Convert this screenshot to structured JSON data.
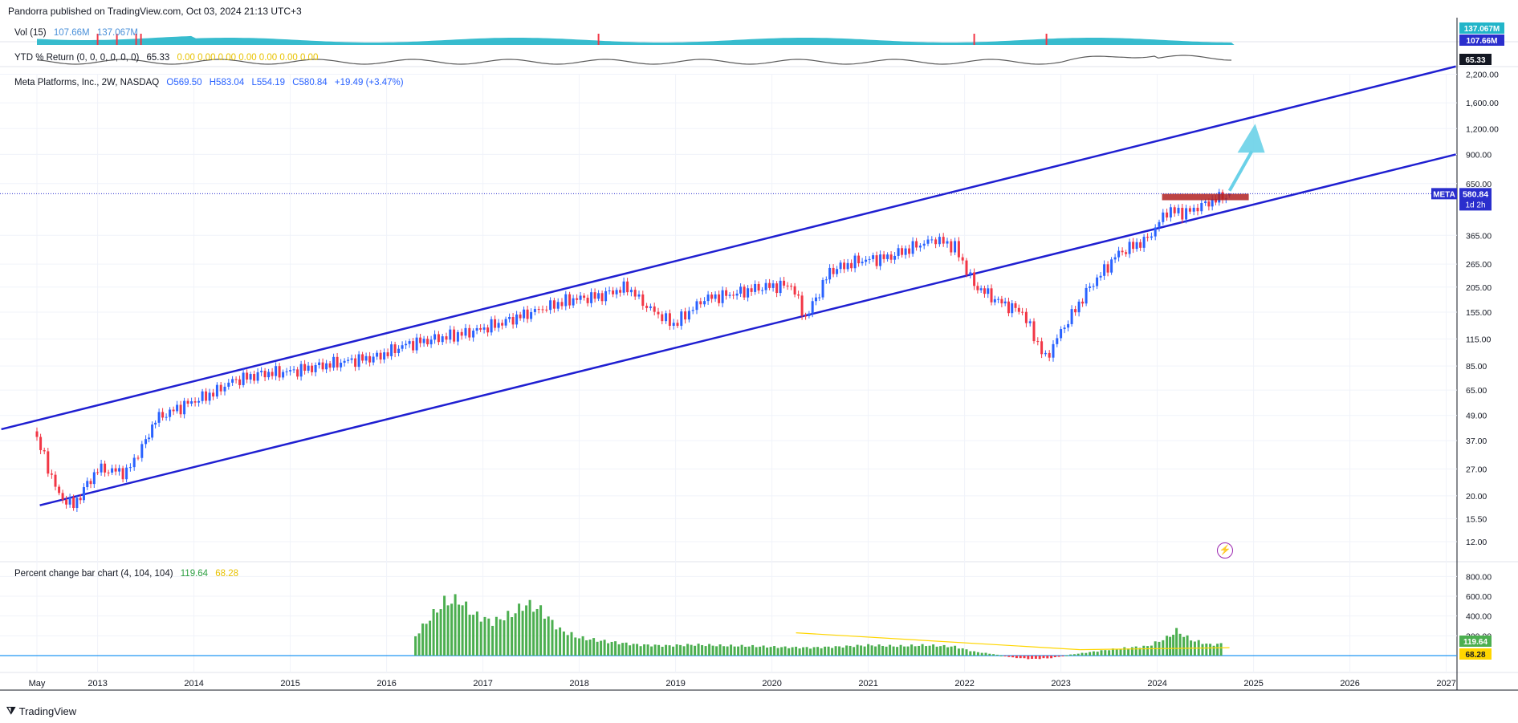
{
  "header": {
    "published": "Pandorra published on TradingView.com, Oct 03, 2024 21:13 UTC+3"
  },
  "legends": {
    "vol": {
      "name": "Vol (15)",
      "v1": "107.66M",
      "v2": "137.067M"
    },
    "ytd": {
      "name": "YTD % Return (0, 0, 0, 0, 0, 0)",
      "v1": "65.33",
      "rest": "0.00  0.00  0.00  0.00  0.00  0.00  0.00"
    },
    "main": {
      "name": "Meta Platforms, Inc., 2W, NASDAQ",
      "o": "O569.50",
      "h": "H583.04",
      "l": "L554.19",
      "c": "C580.84",
      "chg": "+19.49 (+3.47%)"
    },
    "pct": {
      "name": "Percent change bar chart (4, 104, 104)",
      "v1": "119.64",
      "v2": "68.28"
    }
  },
  "right_badges": {
    "vol_top": "137.067M",
    "vol_bottom": "107.66M",
    "ytd": "65.33",
    "ticker": "META",
    "price": "580.84",
    "countdown": "1d 2h",
    "pct_green": "119.64",
    "pct_yellow": "68.28"
  },
  "footer": {
    "brand": "TradingView"
  },
  "colors": {
    "up": "#2962ff",
    "down": "#f23645",
    "channel": "#1f1fd1",
    "vol": "#22b5c9",
    "bars": "#4caf50",
    "bars_neg": "#f23645",
    "signal": "#ffd600",
    "arrow": "#6ad1e8",
    "resistance": "#b22222",
    "baseline": "#2196f3"
  },
  "chart_data": [
    {
      "type": "candlestick",
      "title": "Meta Platforms, Inc., 2W, NASDAQ",
      "scale": "log",
      "ylim": [
        10,
        2600
      ],
      "yticks": [
        "2,200.00",
        "1,600.00",
        "1,200.00",
        "900.00",
        "650.00",
        "365.00",
        "265.00",
        "205.00",
        "155.00",
        "115.00",
        "85.00",
        "65.00",
        "49.00",
        "37.00",
        "27.00",
        "20.00",
        "15.50",
        "12.00"
      ],
      "xticks": [
        "May",
        "2013",
        "2014",
        "2015",
        "2016",
        "2017",
        "2018",
        "2019",
        "2020",
        "2021",
        "2022",
        "2023",
        "2024",
        "2025",
        "2026",
        "2027"
      ],
      "x": [
        2012.37,
        2012.6,
        2012.75,
        2013.0,
        2013.3,
        2013.5,
        2013.6,
        2013.9,
        2014.2,
        2014.4,
        2014.7,
        2015.0,
        2015.3,
        2015.6,
        2015.9,
        2016.2,
        2016.5,
        2016.9,
        2017.2,
        2017.5,
        2017.9,
        2018.2,
        2018.5,
        2018.7,
        2018.98,
        2019.3,
        2019.6,
        2019.9,
        2020.2,
        2020.35,
        2020.6,
        2020.9,
        2021.2,
        2021.5,
        2021.7,
        2021.9,
        2022.1,
        2022.35,
        2022.6,
        2022.84,
        2023.0,
        2023.3,
        2023.6,
        2023.9,
        2024.1,
        2024.3,
        2024.5,
        2024.75
      ],
      "close": [
        38,
        20,
        18,
        27,
        26,
        37,
        47,
        55,
        63,
        72,
        78,
        80,
        85,
        90,
        94,
        108,
        115,
        125,
        138,
        155,
        178,
        185,
        205,
        165,
        135,
        180,
        190,
        205,
        210,
        145,
        245,
        275,
        285,
        325,
        350,
        320,
        210,
        175,
        155,
        92,
        125,
        205,
        300,
        350,
        480,
        470,
        520,
        580.84
      ],
      "trend_lines": [
        {
          "name": "upper",
          "start": [
            2012.0,
            42
          ],
          "end": [
            2027.1,
            2400
          ]
        },
        {
          "name": "lower",
          "start": [
            2012.4,
            18
          ],
          "end": [
            2027.1,
            900
          ]
        }
      ],
      "resistance": {
        "from": 2024.05,
        "to": 2024.95,
        "low": 540,
        "high": 580
      },
      "last_price": 580.84
    },
    {
      "type": "area",
      "title": "Vol (15)",
      "last": [
        "107.66M",
        "137.067M"
      ]
    },
    {
      "type": "line",
      "title": "YTD % Return (0, 0, 0, 0, 0, 0)",
      "last": "65.33"
    },
    {
      "type": "bar",
      "title": "Percent change bar chart (4, 104, 104)",
      "yticks": [
        "800.00",
        "600.00",
        "400.00",
        "200.00"
      ],
      "ylim": [
        -60,
        900
      ],
      "x": [
        2016.3,
        2016.45,
        2016.6,
        2016.75,
        2016.9,
        2017.1,
        2017.3,
        2017.45,
        2017.6,
        2017.8,
        2018.0,
        2018.3,
        2018.6,
        2018.9,
        2019.2,
        2019.5,
        2019.8,
        2020.1,
        2020.4,
        2020.7,
        2021.0,
        2021.3,
        2021.6,
        2021.9,
        2022.1,
        2022.3,
        2022.5,
        2022.7,
        2022.9,
        2023.1,
        2023.3,
        2023.5,
        2023.7,
        2023.9,
        2024.1,
        2024.2,
        2024.35,
        2024.55,
        2024.7
      ],
      "values": [
        200,
        380,
        540,
        560,
        420,
        340,
        420,
        520,
        460,
        260,
        180,
        140,
        110,
        100,
        110,
        100,
        95,
        85,
        80,
        90,
        105,
        95,
        105,
        90,
        40,
        15,
        -20,
        -35,
        -25,
        10,
        35,
        60,
        80,
        95,
        180,
        250,
        160,
        110,
        120
      ],
      "signal": {
        "from": [
          2020.25,
          230
        ],
        "to": [
          2023.2,
          60
        ]
      }
    }
  ]
}
